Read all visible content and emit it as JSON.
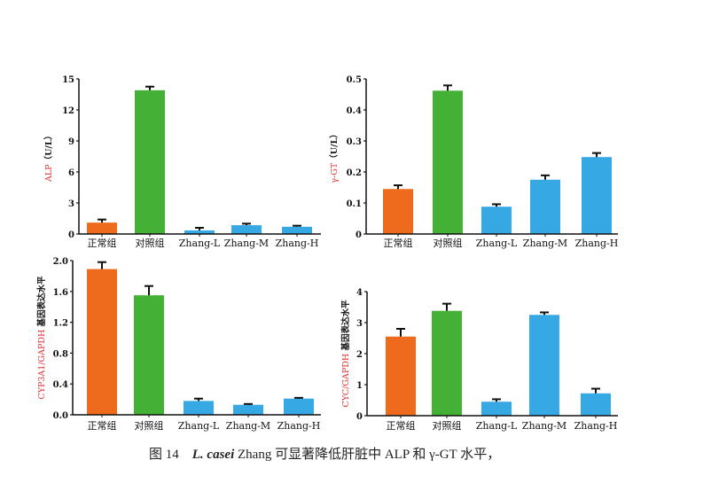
{
  "colors": {
    "normal": "#ee6a1c",
    "control": "#44b035",
    "zhang": "#36a9e4",
    "ylabel_red": "#e0302e",
    "axis": "#111111"
  },
  "chart_data": [
    {
      "type": "bar",
      "categories": [
        "正常组",
        "对照组",
        "Zhang-L",
        "Zhang-M",
        "Zhang-H"
      ],
      "values": [
        1.1,
        13.9,
        0.35,
        0.85,
        0.7
      ],
      "errors": [
        0.3,
        0.35,
        0.25,
        0.15,
        0.1
      ],
      "ylabel_red": "ALP",
      "ylabel_black": "（U/L）",
      "ylim": [
        0,
        15
      ],
      "yticks": [
        "0",
        "3",
        "6",
        "9",
        "12",
        "15"
      ],
      "grid": false
    },
    {
      "type": "bar",
      "categories": [
        "正常组",
        "对照组",
        "Zhang-L",
        "Zhang-M",
        "Zhang-H"
      ],
      "values": [
        0.145,
        0.462,
        0.088,
        0.175,
        0.248
      ],
      "errors": [
        0.012,
        0.017,
        0.008,
        0.014,
        0.013
      ],
      "ylabel_red": "γ-GT",
      "ylabel_black": "（U/L）",
      "ylim": [
        0,
        0.5
      ],
      "yticks": [
        "0",
        "0.1",
        "0.2",
        "0.3",
        "0.4",
        "0.5"
      ],
      "grid": false
    },
    {
      "type": "bar",
      "categories": [
        "正常组",
        "对照组",
        "Zhang-L",
        "Zhang-M",
        "Zhang-H"
      ],
      "values": [
        1.89,
        1.55,
        0.18,
        0.13,
        0.21
      ],
      "errors": [
        0.09,
        0.12,
        0.03,
        0.01,
        0.01
      ],
      "ylabel_red": "CYP3A1/GAPDH",
      "ylabel_black": " 基因表达水平",
      "ylim": [
        0,
        2.0
      ],
      "yticks": [
        "0.0",
        "0.4",
        "0.8",
        "1.2",
        "1.6",
        "2.0"
      ],
      "grid": false
    },
    {
      "type": "bar",
      "categories": [
        "正常组",
        "对照组",
        "Zhang-L",
        "Zhang-M",
        "Zhang-H"
      ],
      "values": [
        2.55,
        3.38,
        0.45,
        3.25,
        0.72
      ],
      "errors": [
        0.25,
        0.23,
        0.08,
        0.08,
        0.15
      ],
      "ylabel_red": "CYC/GAPDH",
      "ylabel_black": " 基因表达水平",
      "ylim": [
        0,
        4
      ],
      "yticks": [
        "0",
        "1",
        "2",
        "3",
        "4"
      ],
      "grid": false
    }
  ],
  "caption": {
    "prefix": "图 14",
    "species": "L. casei",
    "text": " Zhang 可显著降低肝脏中 ALP 和 γ-GT 水平，"
  }
}
